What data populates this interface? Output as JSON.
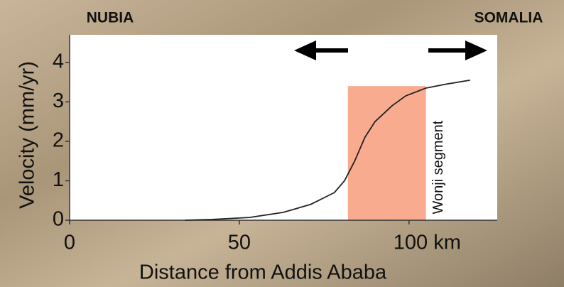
{
  "chart_data": {
    "type": "line",
    "x_label": "Distance from Addis Ababa",
    "y_label": "Velocity (mm/yr)",
    "left_label": "NUBIA",
    "right_label": "SOMALIA",
    "x": [
      34,
      42,
      53,
      63,
      71,
      78,
      81,
      84,
      87,
      90,
      95,
      99,
      105,
      111,
      118
    ],
    "values": [
      0,
      0.02,
      0.07,
      0.2,
      0.4,
      0.7,
      1.0,
      1.5,
      2.1,
      2.5,
      2.9,
      3.15,
      3.35,
      3.45,
      3.55
    ],
    "color": "#222222",
    "xlim": [
      0,
      126
    ],
    "ylim": [
      0,
      4.7
    ],
    "xticks": [
      0,
      50,
      {
        "value": 100,
        "label": "100 km"
      }
    ],
    "yticks": [
      0,
      1,
      2,
      3,
      4
    ],
    "highlight": {
      "label": "Wonji segment",
      "xrange": [
        82,
        105
      ],
      "ymax": 3.4,
      "color": "#f8ab8f"
    }
  }
}
